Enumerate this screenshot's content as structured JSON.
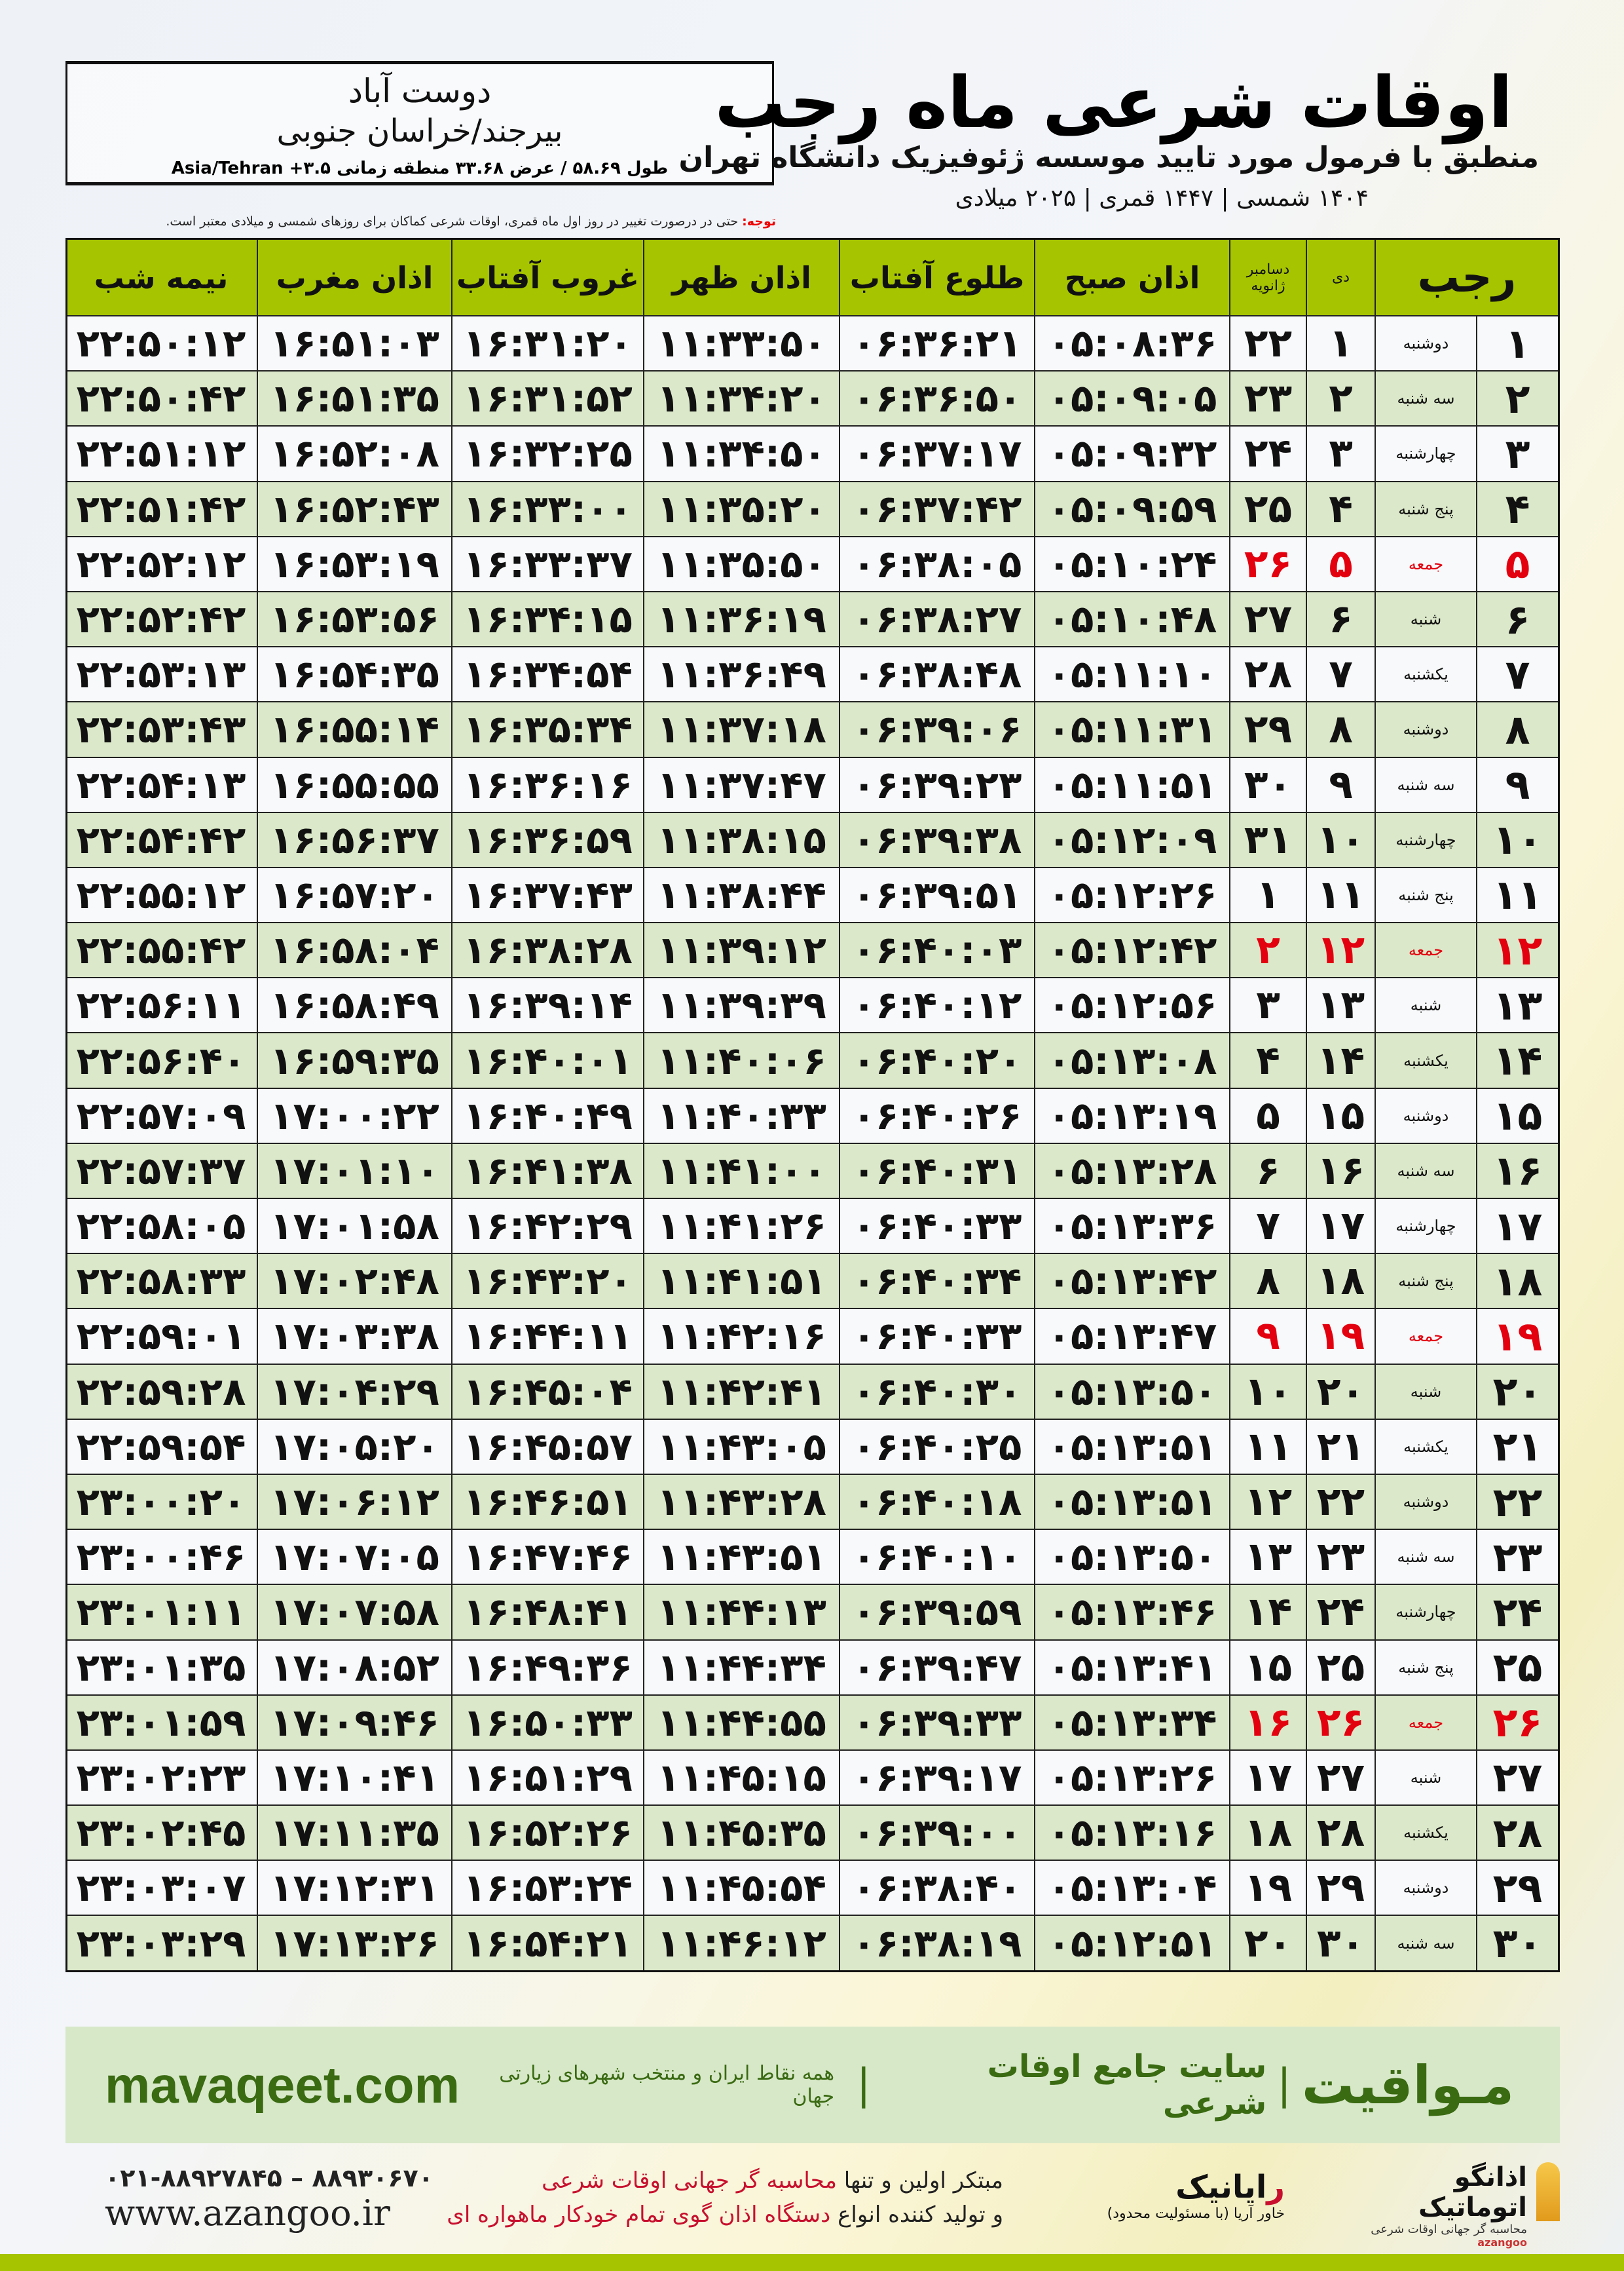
{
  "location": {
    "city": "دوست آباد",
    "province": "بیرجند/خراسان جنوبی",
    "coords": "طول ۵۸.۶۹ / عرض ۳۳.۶۸ منطقه زمانی ۳.۵+ Asia/Tehran"
  },
  "header": {
    "title": "اوقات شرعی ماه رجب",
    "subtitle": "منطبق با فرمول مورد تایید موسسه ژئوفیزیک دانشگاه تهران",
    "dates": "۱۴۰۴ شمسی | ۱۴۴۷ قمری | ۲۰۲۵ میلادی"
  },
  "note": {
    "label": "توجه:",
    "text": " حتی در درصورت تغییر در روز اول ماه قمری، اوقات شرعی کماکان برای روزهای شمسی و میلادی معتبر است."
  },
  "table": {
    "columns": {
      "rajab": "رجب",
      "dey": "دی",
      "dec": "دسامبر",
      "jan": "ژانویه",
      "sobh": "اذان صبح",
      "tolu": "طلوع آفتاب",
      "zohr": "اذان ظهر",
      "ghorub": "غروب آفتاب",
      "maghreb": "اذان مغرب",
      "nime": "نیمه شب"
    },
    "rows": [
      [
        "۱",
        "دوشنبه",
        "۱",
        "۲۲",
        "۰۵:۰۸:۳۶",
        "۰۶:۳۶:۲۱",
        "۱۱:۳۳:۵۰",
        "۱۶:۳۱:۲۰",
        "۱۶:۵۱:۰۳",
        "۲۲:۵۰:۱۲"
      ],
      [
        "۲",
        "سه شنبه",
        "۲",
        "۲۳",
        "۰۵:۰۹:۰۵",
        "۰۶:۳۶:۵۰",
        "۱۱:۳۴:۲۰",
        "۱۶:۳۱:۵۲",
        "۱۶:۵۱:۳۵",
        "۲۲:۵۰:۴۲"
      ],
      [
        "۳",
        "چهارشنبه",
        "۳",
        "۲۴",
        "۰۵:۰۹:۳۲",
        "۰۶:۳۷:۱۷",
        "۱۱:۳۴:۵۰",
        "۱۶:۳۲:۲۵",
        "۱۶:۵۲:۰۸",
        "۲۲:۵۱:۱۲"
      ],
      [
        "۴",
        "پنج شنبه",
        "۴",
        "۲۵",
        "۰۵:۰۹:۵۹",
        "۰۶:۳۷:۴۲",
        "۱۱:۳۵:۲۰",
        "۱۶:۳۳:۰۰",
        "۱۶:۵۲:۴۳",
        "۲۲:۵۱:۴۲"
      ],
      [
        "۵",
        "جمعه",
        "۵",
        "۲۶",
        "۰۵:۱۰:۲۴",
        "۰۶:۳۸:۰۵",
        "۱۱:۳۵:۵۰",
        "۱۶:۳۳:۳۷",
        "۱۶:۵۳:۱۹",
        "۲۲:۵۲:۱۲"
      ],
      [
        "۶",
        "شنبه",
        "۶",
        "۲۷",
        "۰۵:۱۰:۴۸",
        "۰۶:۳۸:۲۷",
        "۱۱:۳۶:۱۹",
        "۱۶:۳۴:۱۵",
        "۱۶:۵۳:۵۶",
        "۲۲:۵۲:۴۲"
      ],
      [
        "۷",
        "یکشنبه",
        "۷",
        "۲۸",
        "۰۵:۱۱:۱۰",
        "۰۶:۳۸:۴۸",
        "۱۱:۳۶:۴۹",
        "۱۶:۳۴:۵۴",
        "۱۶:۵۴:۳۵",
        "۲۲:۵۳:۱۳"
      ],
      [
        "۸",
        "دوشنبه",
        "۸",
        "۲۹",
        "۰۵:۱۱:۳۱",
        "۰۶:۳۹:۰۶",
        "۱۱:۳۷:۱۸",
        "۱۶:۳۵:۳۴",
        "۱۶:۵۵:۱۴",
        "۲۲:۵۳:۴۳"
      ],
      [
        "۹",
        "سه شنبه",
        "۹",
        "۳۰",
        "۰۵:۱۱:۵۱",
        "۰۶:۳۹:۲۳",
        "۱۱:۳۷:۴۷",
        "۱۶:۳۶:۱۶",
        "۱۶:۵۵:۵۵",
        "۲۲:۵۴:۱۳"
      ],
      [
        "۱۰",
        "چهارشنبه",
        "۱۰",
        "۳۱",
        "۰۵:۱۲:۰۹",
        "۰۶:۳۹:۳۸",
        "۱۱:۳۸:۱۵",
        "۱۶:۳۶:۵۹",
        "۱۶:۵۶:۳۷",
        "۲۲:۵۴:۴۲"
      ],
      [
        "۱۱",
        "پنج شنبه",
        "۱۱",
        "۱",
        "۰۵:۱۲:۲۶",
        "۰۶:۳۹:۵۱",
        "۱۱:۳۸:۴۴",
        "۱۶:۳۷:۴۳",
        "۱۶:۵۷:۲۰",
        "۲۲:۵۵:۱۲"
      ],
      [
        "۱۲",
        "جمعه",
        "۱۲",
        "۲",
        "۰۵:۱۲:۴۲",
        "۰۶:۴۰:۰۳",
        "۱۱:۳۹:۱۲",
        "۱۶:۳۸:۲۸",
        "۱۶:۵۸:۰۴",
        "۲۲:۵۵:۴۲"
      ],
      [
        "۱۳",
        "شنبه",
        "۱۳",
        "۳",
        "۰۵:۱۲:۵۶",
        "۰۶:۴۰:۱۲",
        "۱۱:۳۹:۳۹",
        "۱۶:۳۹:۱۴",
        "۱۶:۵۸:۴۹",
        "۲۲:۵۶:۱۱"
      ],
      [
        "۱۴",
        "یکشنبه",
        "۱۴",
        "۴",
        "۰۵:۱۳:۰۸",
        "۰۶:۴۰:۲۰",
        "۱۱:۴۰:۰۶",
        "۱۶:۴۰:۰۱",
        "۱۶:۵۹:۳۵",
        "۲۲:۵۶:۴۰"
      ],
      [
        "۱۵",
        "دوشنبه",
        "۱۵",
        "۵",
        "۰۵:۱۳:۱۹",
        "۰۶:۴۰:۲۶",
        "۱۱:۴۰:۳۳",
        "۱۶:۴۰:۴۹",
        "۱۷:۰۰:۲۲",
        "۲۲:۵۷:۰۹"
      ],
      [
        "۱۶",
        "سه شنبه",
        "۱۶",
        "۶",
        "۰۵:۱۳:۲۸",
        "۰۶:۴۰:۳۱",
        "۱۱:۴۱:۰۰",
        "۱۶:۴۱:۳۸",
        "۱۷:۰۱:۱۰",
        "۲۲:۵۷:۳۷"
      ],
      [
        "۱۷",
        "چهارشنبه",
        "۱۷",
        "۷",
        "۰۵:۱۳:۳۶",
        "۰۶:۴۰:۳۳",
        "۱۱:۴۱:۲۶",
        "۱۶:۴۲:۲۹",
        "۱۷:۰۱:۵۸",
        "۲۲:۵۸:۰۵"
      ],
      [
        "۱۸",
        "پنج شنبه",
        "۱۸",
        "۸",
        "۰۵:۱۳:۴۲",
        "۰۶:۴۰:۳۴",
        "۱۱:۴۱:۵۱",
        "۱۶:۴۳:۲۰",
        "۱۷:۰۲:۴۸",
        "۲۲:۵۸:۳۳"
      ],
      [
        "۱۹",
        "جمعه",
        "۱۹",
        "۹",
        "۰۵:۱۳:۴۷",
        "۰۶:۴۰:۳۳",
        "۱۱:۴۲:۱۶",
        "۱۶:۴۴:۱۱",
        "۱۷:۰۳:۳۸",
        "۲۲:۵۹:۰۱"
      ],
      [
        "۲۰",
        "شنبه",
        "۲۰",
        "۱۰",
        "۰۵:۱۳:۵۰",
        "۰۶:۴۰:۳۰",
        "۱۱:۴۲:۴۱",
        "۱۶:۴۵:۰۴",
        "۱۷:۰۴:۲۹",
        "۲۲:۵۹:۲۸"
      ],
      [
        "۲۱",
        "یکشنبه",
        "۲۱",
        "۱۱",
        "۰۵:۱۳:۵۱",
        "۰۶:۴۰:۲۵",
        "۱۱:۴۳:۰۵",
        "۱۶:۴۵:۵۷",
        "۱۷:۰۵:۲۰",
        "۲۲:۵۹:۵۴"
      ],
      [
        "۲۲",
        "دوشنبه",
        "۲۲",
        "۱۲",
        "۰۵:۱۳:۵۱",
        "۰۶:۴۰:۱۸",
        "۱۱:۴۳:۲۸",
        "۱۶:۴۶:۵۱",
        "۱۷:۰۶:۱۲",
        "۲۳:۰۰:۲۰"
      ],
      [
        "۲۳",
        "سه شنبه",
        "۲۳",
        "۱۳",
        "۰۵:۱۳:۵۰",
        "۰۶:۴۰:۱۰",
        "۱۱:۴۳:۵۱",
        "۱۶:۴۷:۴۶",
        "۱۷:۰۷:۰۵",
        "۲۳:۰۰:۴۶"
      ],
      [
        "۲۴",
        "چهارشنبه",
        "۲۴",
        "۱۴",
        "۰۵:۱۳:۴۶",
        "۰۶:۳۹:۵۹",
        "۱۱:۴۴:۱۳",
        "۱۶:۴۸:۴۱",
        "۱۷:۰۷:۵۸",
        "۲۳:۰۱:۱۱"
      ],
      [
        "۲۵",
        "پنج شنبه",
        "۲۵",
        "۱۵",
        "۰۵:۱۳:۴۱",
        "۰۶:۳۹:۴۷",
        "۱۱:۴۴:۳۴",
        "۱۶:۴۹:۳۶",
        "۱۷:۰۸:۵۲",
        "۲۳:۰۱:۳۵"
      ],
      [
        "۲۶",
        "جمعه",
        "۲۶",
        "۱۶",
        "۰۵:۱۳:۳۴",
        "۰۶:۳۹:۳۳",
        "۱۱:۴۴:۵۵",
        "۱۶:۵۰:۳۳",
        "۱۷:۰۹:۴۶",
        "۲۳:۰۱:۵۹"
      ],
      [
        "۲۷",
        "شنبه",
        "۲۷",
        "۱۷",
        "۰۵:۱۳:۲۶",
        "۰۶:۳۹:۱۷",
        "۱۱:۴۵:۱۵",
        "۱۶:۵۱:۲۹",
        "۱۷:۱۰:۴۱",
        "۲۳:۰۲:۲۳"
      ],
      [
        "۲۸",
        "یکشنبه",
        "۲۸",
        "۱۸",
        "۰۵:۱۳:۱۶",
        "۰۶:۳۹:۰۰",
        "۱۱:۴۵:۳۵",
        "۱۶:۵۲:۲۶",
        "۱۷:۱۱:۳۵",
        "۲۳:۰۲:۴۵"
      ],
      [
        "۲۹",
        "دوشنبه",
        "۲۹",
        "۱۹",
        "۰۵:۱۳:۰۴",
        "۰۶:۳۸:۴۰",
        "۱۱:۴۵:۵۴",
        "۱۶:۵۳:۲۴",
        "۱۷:۱۲:۳۱",
        "۲۳:۰۳:۰۷"
      ],
      [
        "۳۰",
        "سه شنبه",
        "۳۰",
        "۲۰",
        "۰۵:۱۲:۵۱",
        "۰۶:۳۸:۱۹",
        "۱۱:۴۶:۱۲",
        "۱۶:۵۴:۲۱",
        "۱۷:۱۳:۲۶",
        "۲۳:۰۳:۲۹"
      ]
    ],
    "friday_color": "#e3000f",
    "header_color": "#a6c400"
  },
  "banner": {
    "brand": "مـواقیت",
    "sep": "|",
    "slogan": "سایت جامع اوقات شرعی",
    "sep2": "|",
    "sub": "همه نقاط ایران و منتخب شهرهای زیارتی جهان",
    "site": "mavaqeet.com"
  },
  "footer": {
    "logo1_name": "اذانگو اتوماتیک",
    "logo1_sub": "محاسبه گر جهانی اوقات شرعی",
    "logo1_en": "azangoo",
    "logo2_pre": "ر",
    "logo2_name": "ایانیک",
    "logo2_tag": "خاور آریا (با مسئولیت محدود)",
    "line1_a": "مبتکر اولین و تنها ",
    "line1_b": "محاسبه گر جهانی اوقات شرعی",
    "line2_a": "و تولید کننده انواع ",
    "line2_b": "دستگاه اذان گوی تمام خودکار ماهواره ای",
    "phone": "۰۲۱-۸۸۹۲۷۸۴۵ – ۸۸۹۳۰۶۷۰",
    "web": "www.azangoo.ir"
  }
}
